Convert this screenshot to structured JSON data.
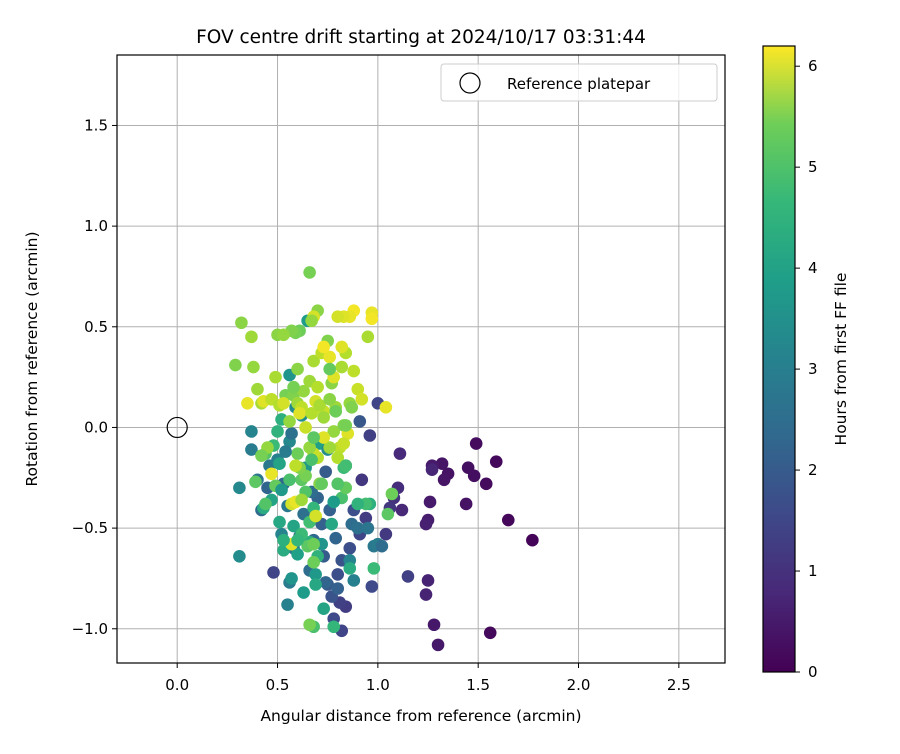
{
  "chart_data": {
    "type": "scatter",
    "title": "FOV centre drift starting at 2024/10/17 03:31:44",
    "xlabel": "Angular distance from reference (arcmin)",
    "ylabel": "Rotation from reference (arcmin)",
    "xlim": [
      -0.3,
      2.73
    ],
    "ylim": [
      -1.17,
      1.85
    ],
    "xticks": [
      0.0,
      0.5,
      1.0,
      1.5,
      2.0,
      2.5
    ],
    "xtick_labels": [
      "0.0",
      "0.5",
      "1.0",
      "1.5",
      "2.0",
      "2.5"
    ],
    "yticks": [
      -1.0,
      -0.5,
      0.0,
      0.5,
      1.0,
      1.5
    ],
    "ytick_labels": [
      "−1.0",
      "−0.5",
      "0.0",
      "0.5",
      "1.0",
      "1.5"
    ],
    "grid": true,
    "legend": {
      "placement": "upper right",
      "entries": [
        "Reference platepar"
      ]
    },
    "reference_point": {
      "x": 0.0,
      "y": 0.0,
      "label": "Reference platepar"
    },
    "colorbar": {
      "label": "Hours from first FF file",
      "range": [
        0,
        6.2
      ],
      "ticks": [
        0,
        1,
        2,
        3,
        4,
        5,
        6
      ],
      "tick_labels": [
        "0",
        "1",
        "2",
        "3",
        "4",
        "5",
        "6"
      ],
      "colormap": "viridis"
    },
    "points": [
      {
        "x": 1.77,
        "y": -0.56,
        "t": 0.05
      },
      {
        "x": 1.65,
        "y": -0.46,
        "t": 0.1
      },
      {
        "x": 1.59,
        "y": -0.17,
        "t": 0.15
      },
      {
        "x": 1.56,
        "y": -1.02,
        "t": 0.15
      },
      {
        "x": 1.54,
        "y": -0.28,
        "t": 0.2
      },
      {
        "x": 1.49,
        "y": -0.08,
        "t": 0.2
      },
      {
        "x": 1.48,
        "y": -0.24,
        "t": 0.25
      },
      {
        "x": 1.45,
        "y": -0.2,
        "t": 0.25
      },
      {
        "x": 1.44,
        "y": -0.38,
        "t": 0.3
      },
      {
        "x": 1.35,
        "y": -0.23,
        "t": 0.3
      },
      {
        "x": 1.33,
        "y": -0.26,
        "t": 0.35
      },
      {
        "x": 1.32,
        "y": -0.18,
        "t": 0.35
      },
      {
        "x": 1.3,
        "y": -1.08,
        "t": 0.4
      },
      {
        "x": 1.28,
        "y": -0.98,
        "t": 0.4
      },
      {
        "x": 1.27,
        "y": -0.19,
        "t": 0.45
      },
      {
        "x": 1.26,
        "y": -0.37,
        "t": 0.45
      },
      {
        "x": 1.25,
        "y": -0.46,
        "t": 0.5
      },
      {
        "x": 1.24,
        "y": -0.48,
        "t": 0.55
      },
      {
        "x": 1.25,
        "y": -0.76,
        "t": 0.6
      },
      {
        "x": 1.24,
        "y": -0.83,
        "t": 0.6
      },
      {
        "x": 1.27,
        "y": -0.21,
        "t": 0.65
      },
      {
        "x": 1.12,
        "y": -0.41,
        "t": 0.7
      },
      {
        "x": 1.11,
        "y": -0.13,
        "t": 0.75
      },
      {
        "x": 1.1,
        "y": -0.3,
        "t": 0.8
      },
      {
        "x": 1.08,
        "y": -0.35,
        "t": 0.9
      },
      {
        "x": 1.06,
        "y": -0.4,
        "t": 1.0
      },
      {
        "x": 1.04,
        "y": -0.53,
        "t": 1.05
      },
      {
        "x": 1.15,
        "y": -0.74,
        "t": 1.2
      },
      {
        "x": 1.0,
        "y": 0.12,
        "t": 1.3
      },
      {
        "x": 0.97,
        "y": -0.79,
        "t": 1.4
      },
      {
        "x": 0.96,
        "y": -0.04,
        "t": 1.2
      },
      {
        "x": 0.92,
        "y": -0.26,
        "t": 1.0
      },
      {
        "x": 0.94,
        "y": -0.45,
        "t": 1.1
      },
      {
        "x": 0.91,
        "y": -0.53,
        "t": 1.3
      },
      {
        "x": 0.88,
        "y": -0.41,
        "t": 1.5
      },
      {
        "x": 0.86,
        "y": -0.6,
        "t": 1.5
      },
      {
        "x": 0.84,
        "y": -0.89,
        "t": 1.1
      },
      {
        "x": 0.81,
        "y": -0.87,
        "t": 1.2
      },
      {
        "x": 0.82,
        "y": -1.01,
        "t": 1.3
      },
      {
        "x": 0.78,
        "y": -0.95,
        "t": 1.4
      },
      {
        "x": 0.8,
        "y": -0.73,
        "t": 1.5
      },
      {
        "x": 0.77,
        "y": -0.84,
        "t": 1.6
      },
      {
        "x": 0.75,
        "y": -0.78,
        "t": 1.7
      },
      {
        "x": 0.73,
        "y": -0.64,
        "t": 1.8
      },
      {
        "x": 0.72,
        "y": -0.48,
        "t": 1.9
      },
      {
        "x": 0.7,
        "y": -0.35,
        "t": 2.0
      },
      {
        "x": 0.68,
        "y": -0.56,
        "t": 2.1
      },
      {
        "x": 0.66,
        "y": -0.71,
        "t": 2.2
      },
      {
        "x": 0.63,
        "y": -0.43,
        "t": 2.3
      },
      {
        "x": 0.61,
        "y": -0.54,
        "t": 2.4
      },
      {
        "x": 0.58,
        "y": -0.6,
        "t": 2.5
      },
      {
        "x": 0.56,
        "y": -0.77,
        "t": 2.6
      },
      {
        "x": 0.55,
        "y": -0.88,
        "t": 2.7
      },
      {
        "x": 0.52,
        "y": -0.53,
        "t": 2.8
      },
      {
        "x": 0.48,
        "y": -0.72,
        "t": 1.3
      },
      {
        "x": 0.45,
        "y": -0.3,
        "t": 2.0
      },
      {
        "x": 0.42,
        "y": -0.41,
        "t": 2.2
      },
      {
        "x": 0.4,
        "y": -0.26,
        "t": 2.4
      },
      {
        "x": 0.37,
        "y": -0.11,
        "t": 2.6
      },
      {
        "x": 0.37,
        "y": -0.02,
        "t": 2.8
      },
      {
        "x": 0.31,
        "y": -0.3,
        "t": 2.9
      },
      {
        "x": 0.31,
        "y": -0.64,
        "t": 3.0
      },
      {
        "x": 0.46,
        "y": -0.19,
        "t": 2.5
      },
      {
        "x": 0.5,
        "y": -0.16,
        "t": 2.7
      },
      {
        "x": 0.53,
        "y": -0.28,
        "t": 2.1
      },
      {
        "x": 0.56,
        "y": -0.07,
        "t": 2.9
      },
      {
        "x": 0.59,
        "y": 0.1,
        "t": 3.0
      },
      {
        "x": 0.62,
        "y": 0.06,
        "t": 3.1
      },
      {
        "x": 0.56,
        "y": 0.26,
        "t": 3.2
      },
      {
        "x": 0.64,
        "y": -0.2,
        "t": 3.3
      },
      {
        "x": 0.67,
        "y": -0.32,
        "t": 2.2
      },
      {
        "x": 0.65,
        "y": 0.53,
        "t": 3.4
      },
      {
        "x": 0.71,
        "y": -0.08,
        "t": 3.5
      },
      {
        "x": 0.74,
        "y": -0.22,
        "t": 1.8
      },
      {
        "x": 0.76,
        "y": -0.41,
        "t": 1.9
      },
      {
        "x": 0.79,
        "y": -0.55,
        "t": 2.0
      },
      {
        "x": 0.82,
        "y": -0.66,
        "t": 1.6
      },
      {
        "x": 0.84,
        "y": -0.19,
        "t": 2.1
      },
      {
        "x": 0.87,
        "y": -0.48,
        "t": 2.2
      },
      {
        "x": 0.9,
        "y": -0.5,
        "t": 2.3
      },
      {
        "x": 0.91,
        "y": 0.03,
        "t": 1.7
      },
      {
        "x": 0.95,
        "y": -0.5,
        "t": 2.4
      },
      {
        "x": 0.98,
        "y": -0.59,
        "t": 2.5
      },
      {
        "x": 1.0,
        "y": -0.58,
        "t": 2.6
      },
      {
        "x": 1.02,
        "y": -0.59,
        "t": 2.2
      },
      {
        "x": 0.88,
        "y": -0.76,
        "t": 2.7
      },
      {
        "x": 0.86,
        "y": -0.66,
        "t": 2.8
      },
      {
        "x": 0.8,
        "y": -0.8,
        "t": 1.9
      },
      {
        "x": 0.74,
        "y": -0.77,
        "t": 2.0
      },
      {
        "x": 0.72,
        "y": -0.58,
        "t": 3.2
      },
      {
        "x": 0.69,
        "y": -0.73,
        "t": 3.3
      },
      {
        "x": 0.63,
        "y": -0.82,
        "t": 3.4
      },
      {
        "x": 0.6,
        "y": -0.63,
        "t": 3.5
      },
      {
        "x": 0.58,
        "y": -0.49,
        "t": 3.6
      },
      {
        "x": 0.55,
        "y": -0.39,
        "t": 2.5
      },
      {
        "x": 0.51,
        "y": -0.47,
        "t": 3.7
      },
      {
        "x": 0.53,
        "y": -0.61,
        "t": 3.8
      },
      {
        "x": 0.57,
        "y": -0.75,
        "t": 3.2
      },
      {
        "x": 0.66,
        "y": -0.57,
        "t": 3.9
      },
      {
        "x": 0.7,
        "y": -0.64,
        "t": 4.0
      },
      {
        "x": 0.73,
        "y": -0.9,
        "t": 3.6
      },
      {
        "x": 0.78,
        "y": -0.99,
        "t": 4.1
      },
      {
        "x": 0.68,
        "y": -0.99,
        "t": 4.4
      },
      {
        "x": 0.86,
        "y": -0.7,
        "t": 3.8
      },
      {
        "x": 0.96,
        "y": -0.38,
        "t": 3.9
      },
      {
        "x": 0.98,
        "y": -0.7,
        "t": 4.2
      },
      {
        "x": 1.05,
        "y": -0.43,
        "t": 4.6
      },
      {
        "x": 1.07,
        "y": -0.33,
        "t": 4.8
      },
      {
        "x": 0.94,
        "y": -0.38,
        "t": 4.3
      },
      {
        "x": 0.9,
        "y": -0.38,
        "t": 4.0
      },
      {
        "x": 0.83,
        "y": -0.2,
        "t": 4.2
      },
      {
        "x": 0.82,
        "y": -0.35,
        "t": 4.4
      },
      {
        "x": 0.84,
        "y": -0.3,
        "t": 4.7
      },
      {
        "x": 0.78,
        "y": -0.37,
        "t": 3.4
      },
      {
        "x": 0.77,
        "y": -0.48,
        "t": 3.7
      },
      {
        "x": 0.75,
        "y": -0.11,
        "t": 3.0
      },
      {
        "x": 0.71,
        "y": -0.28,
        "t": 3.1
      },
      {
        "x": 0.68,
        "y": -0.4,
        "t": 4.1
      },
      {
        "x": 0.66,
        "y": -0.47,
        "t": 4.3
      },
      {
        "x": 0.64,
        "y": -0.32,
        "t": 4.5
      },
      {
        "x": 0.62,
        "y": -0.26,
        "t": 4.6
      },
      {
        "x": 0.6,
        "y": -0.13,
        "t": 4.8
      },
      {
        "x": 0.57,
        "y": -0.03,
        "t": 2.3
      },
      {
        "x": 0.54,
        "y": -0.12,
        "t": 2.6
      },
      {
        "x": 0.52,
        "y": 0.04,
        "t": 3.9
      },
      {
        "x": 0.5,
        "y": -0.02,
        "t": 4.0
      },
      {
        "x": 0.48,
        "y": -0.09,
        "t": 4.2
      },
      {
        "x": 0.44,
        "y": -0.13,
        "t": 4.5
      },
      {
        "x": 0.43,
        "y": -0.4,
        "t": 3.8
      },
      {
        "x": 0.47,
        "y": -0.36,
        "t": 3.6
      },
      {
        "x": 0.49,
        "y": -0.29,
        "t": 4.7
      },
      {
        "x": 0.52,
        "y": -0.31,
        "t": 3.3
      },
      {
        "x": 0.54,
        "y": 0.16,
        "t": 4.9
      },
      {
        "x": 0.58,
        "y": 0.16,
        "t": 5.0
      },
      {
        "x": 0.6,
        "y": 0.29,
        "t": 5.1
      },
      {
        "x": 0.63,
        "y": 0.18,
        "t": 5.2
      },
      {
        "x": 0.66,
        "y": 0.23,
        "t": 5.3
      },
      {
        "x": 0.68,
        "y": 0.33,
        "t": 5.4
      },
      {
        "x": 0.7,
        "y": 0.2,
        "t": 5.5
      },
      {
        "x": 0.72,
        "y": 0.37,
        "t": 5.6
      },
      {
        "x": 0.73,
        "y": 0.08,
        "t": 5.7
      },
      {
        "x": 0.75,
        "y": 0.43,
        "t": 5.0
      },
      {
        "x": 0.77,
        "y": 0.22,
        "t": 5.1
      },
      {
        "x": 0.79,
        "y": 0.1,
        "t": 5.3
      },
      {
        "x": 0.82,
        "y": 0.3,
        "t": 5.4
      },
      {
        "x": 0.84,
        "y": 0.37,
        "t": 5.5
      },
      {
        "x": 0.86,
        "y": 0.12,
        "t": 5.2
      },
      {
        "x": 0.88,
        "y": 0.28,
        "t": 5.6
      },
      {
        "x": 0.9,
        "y": 0.19,
        "t": 5.7
      },
      {
        "x": 0.92,
        "y": 0.14,
        "t": 5.8
      },
      {
        "x": 0.95,
        "y": 0.45,
        "t": 5.4
      },
      {
        "x": 0.97,
        "y": 0.57,
        "t": 6.0
      },
      {
        "x": 0.97,
        "y": 0.54,
        "t": 6.1
      },
      {
        "x": 1.04,
        "y": 0.1,
        "t": 6.0
      },
      {
        "x": 0.88,
        "y": 0.58,
        "t": 6.1
      },
      {
        "x": 0.86,
        "y": 0.55,
        "t": 6.0
      },
      {
        "x": 0.83,
        "y": 0.55,
        "t": 5.9
      },
      {
        "x": 0.8,
        "y": 0.55,
        "t": 5.8
      },
      {
        "x": 0.82,
        "y": 0.4,
        "t": 5.9
      },
      {
        "x": 0.78,
        "y": 0.25,
        "t": 5.9
      },
      {
        "x": 0.76,
        "y": 0.35,
        "t": 6.0
      },
      {
        "x": 0.73,
        "y": 0.4,
        "t": 6.1
      },
      {
        "x": 0.7,
        "y": 0.58,
        "t": 5.1
      },
      {
        "x": 0.68,
        "y": 0.55,
        "t": 5.8
      },
      {
        "x": 0.67,
        "y": 0.53,
        "t": 5.2
      },
      {
        "x": 0.66,
        "y": 0.77,
        "t": 4.9
      },
      {
        "x": 0.61,
        "y": 0.48,
        "t": 4.8
      },
      {
        "x": 0.59,
        "y": 0.47,
        "t": 4.9
      },
      {
        "x": 0.57,
        "y": 0.48,
        "t": 5.0
      },
      {
        "x": 0.5,
        "y": 0.46,
        "t": 5.1
      },
      {
        "x": 0.53,
        "y": 0.46,
        "t": 5.2
      },
      {
        "x": 0.37,
        "y": 0.45,
        "t": 5.3
      },
      {
        "x": 0.32,
        "y": 0.52,
        "t": 5.1
      },
      {
        "x": 0.29,
        "y": 0.31,
        "t": 5.0
      },
      {
        "x": 0.38,
        "y": 0.3,
        "t": 5.2
      },
      {
        "x": 0.4,
        "y": 0.19,
        "t": 5.3
      },
      {
        "x": 0.42,
        "y": 0.12,
        "t": 5.4
      },
      {
        "x": 0.35,
        "y": 0.12,
        "t": 6.0
      },
      {
        "x": 0.43,
        "y": 0.13,
        "t": 5.9
      },
      {
        "x": 0.47,
        "y": 0.14,
        "t": 5.6
      },
      {
        "x": 0.49,
        "y": 0.25,
        "t": 5.4
      },
      {
        "x": 0.51,
        "y": 0.11,
        "t": 5.5
      },
      {
        "x": 0.53,
        "y": 0.12,
        "t": 5.8
      },
      {
        "x": 0.56,
        "y": 0.03,
        "t": 5.2
      },
      {
        "x": 0.58,
        "y": 0.2,
        "t": 4.9
      },
      {
        "x": 0.6,
        "y": 0.12,
        "t": 5.3
      },
      {
        "x": 0.62,
        "y": 0.1,
        "t": 5.6
      },
      {
        "x": 0.61,
        "y": 0.07,
        "t": 5.9
      },
      {
        "x": 0.64,
        "y": 0.0,
        "t": 5.7
      },
      {
        "x": 0.67,
        "y": 0.07,
        "t": 5.5
      },
      {
        "x": 0.69,
        "y": 0.13,
        "t": 5.8
      },
      {
        "x": 0.71,
        "y": 0.11,
        "t": 5.4
      },
      {
        "x": 0.73,
        "y": 0.05,
        "t": 5.3
      },
      {
        "x": 0.76,
        "y": 0.14,
        "t": 5.1
      },
      {
        "x": 0.78,
        "y": -0.02,
        "t": 5.2
      },
      {
        "x": 0.81,
        "y": -0.1,
        "t": 5.6
      },
      {
        "x": 0.83,
        "y": 0.01,
        "t": 5.0
      },
      {
        "x": 0.85,
        "y": -0.03,
        "t": 5.9
      },
      {
        "x": 0.83,
        "y": -0.08,
        "t": 5.7
      },
      {
        "x": 0.8,
        "y": -0.15,
        "t": 5.5
      },
      {
        "x": 0.76,
        "y": -0.1,
        "t": 5.3
      },
      {
        "x": 0.73,
        "y": -0.05,
        "t": 5.9
      },
      {
        "x": 0.7,
        "y": -0.15,
        "t": 5.5
      },
      {
        "x": 0.68,
        "y": -0.13,
        "t": 5.7
      },
      {
        "x": 0.66,
        "y": -0.1,
        "t": 5.2
      },
      {
        "x": 0.64,
        "y": -0.24,
        "t": 4.9
      },
      {
        "x": 0.61,
        "y": -0.2,
        "t": 5.0
      },
      {
        "x": 0.59,
        "y": -0.19,
        "t": 5.6
      },
      {
        "x": 0.57,
        "y": -0.38,
        "t": 5.8
      },
      {
        "x": 0.59,
        "y": -0.37,
        "t": 6.0
      },
      {
        "x": 0.62,
        "y": -0.36,
        "t": 5.3
      },
      {
        "x": 0.57,
        "y": -0.58,
        "t": 5.9
      },
      {
        "x": 0.69,
        "y": -0.44,
        "t": 5.8
      },
      {
        "x": 0.71,
        "y": -0.28,
        "t": 5.1
      },
      {
        "x": 0.47,
        "y": -0.23,
        "t": 6.0
      },
      {
        "x": 0.45,
        "y": -0.1,
        "t": 5.2
      },
      {
        "x": 0.42,
        "y": -0.14,
        "t": 4.9
      },
      {
        "x": 0.39,
        "y": -0.27,
        "t": 4.6
      },
      {
        "x": 0.44,
        "y": -0.38,
        "t": 4.5
      },
      {
        "x": 0.56,
        "y": -0.26,
        "t": 4.4
      },
      {
        "x": 0.62,
        "y": -0.53,
        "t": 4.2
      },
      {
        "x": 0.65,
        "y": -0.59,
        "t": 4.6
      },
      {
        "x": 0.68,
        "y": -0.58,
        "t": 4.8
      },
      {
        "x": 0.72,
        "y": -0.28,
        "t": 4.7
      },
      {
        "x": 0.8,
        "y": -0.28,
        "t": 4.5
      },
      {
        "x": 0.84,
        "y": -0.19,
        "t": 4.3
      },
      {
        "x": 0.84,
        "y": 0.01,
        "t": 4.9
      },
      {
        "x": 0.87,
        "y": 0.1,
        "t": 5.0
      },
      {
        "x": 0.79,
        "y": 0.08,
        "t": 4.8
      },
      {
        "x": 0.76,
        "y": 0.29,
        "t": 4.7
      },
      {
        "x": 0.68,
        "y": -0.05,
        "t": 4.6
      },
      {
        "x": 0.67,
        "y": -0.16,
        "t": 4.4
      },
      {
        "x": 0.68,
        "y": -0.67,
        "t": 4.8
      },
      {
        "x": 0.66,
        "y": -0.98,
        "t": 4.9
      },
      {
        "x": 0.69,
        "y": -0.78,
        "t": 3.7
      },
      {
        "x": 0.6,
        "y": -0.56,
        "t": 4.1
      },
      {
        "x": 0.53,
        "y": -0.56,
        "t": 3.9
      },
      {
        "x": 0.51,
        "y": -0.18,
        "t": 3.6
      }
    ]
  }
}
